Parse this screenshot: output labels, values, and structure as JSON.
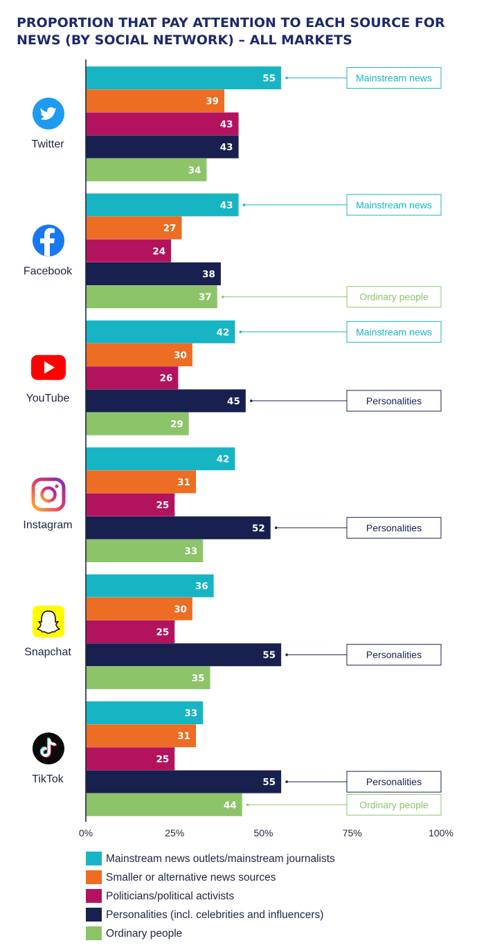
{
  "title_lines": [
    "PROPORTION THAT PAY ATTENTION TO EACH SOURCE FOR",
    "NEWS (BY SOCIAL NETWORK) – ALL MARKETS"
  ],
  "colors": {
    "title": "#1c2a6b",
    "axis": "#1f2440",
    "Mainstream news outlets/mainstream journalists": "#17b5c4",
    "Smaller or alternative news sources": "#ec6d23",
    "Politicians/political activists": "#b3135e",
    "Personalities (incl. celebrities and influencers)": "#18204f",
    "Ordinary people": "#8dc46a"
  },
  "icons": {
    "Twitter": "twitter-bird-icon",
    "Facebook": "facebook-f-icon",
    "YouTube": "youtube-play-icon",
    "Instagram": "instagram-camera-icon",
    "Snapchat": "snapchat-ghost-icon",
    "TikTok": "tiktok-note-icon"
  },
  "chart_data": {
    "type": "bar",
    "orientation": "horizontal",
    "categories": [
      "Twitter",
      "Facebook",
      "YouTube",
      "Instagram",
      "Snapchat",
      "TikTok"
    ],
    "series": [
      {
        "name": "Mainstream news outlets/mainstream journalists",
        "values": [
          55,
          43,
          42,
          42,
          36,
          33
        ]
      },
      {
        "name": "Smaller or alternative news sources",
        "values": [
          39,
          27,
          30,
          31,
          30,
          31
        ]
      },
      {
        "name": "Politicians/political activists",
        "values": [
          43,
          24,
          26,
          25,
          25,
          25
        ]
      },
      {
        "name": "Personalities (incl. celebrities and influencers)",
        "values": [
          43,
          38,
          45,
          52,
          55,
          55
        ]
      },
      {
        "name": "Ordinary people",
        "values": [
          34,
          37,
          29,
          33,
          35,
          44
        ]
      }
    ],
    "xlim": [
      0,
      100
    ],
    "xticks": [
      "0%",
      "25%",
      "50%",
      "75%",
      "100%"
    ],
    "xlabel": "",
    "ylabel": "",
    "grid": false,
    "legend_position": "bottom",
    "callouts": [
      {
        "category": "Twitter",
        "series": 0,
        "text": "Mainstream news"
      },
      {
        "category": "Facebook",
        "series": 0,
        "text": "Mainstream news"
      },
      {
        "category": "Facebook",
        "series": 4,
        "text": "Ordinary people"
      },
      {
        "category": "YouTube",
        "series": 0,
        "text": "Mainstream news"
      },
      {
        "category": "YouTube",
        "series": 3,
        "text": "Personalities"
      },
      {
        "category": "Instagram",
        "series": 3,
        "text": "Personalities"
      },
      {
        "category": "Snapchat",
        "series": 3,
        "text": "Personalities"
      },
      {
        "category": "TikTok",
        "series": 3,
        "text": "Personalities"
      },
      {
        "category": "TikTok",
        "series": 4,
        "text": "Ordinary people"
      }
    ]
  }
}
